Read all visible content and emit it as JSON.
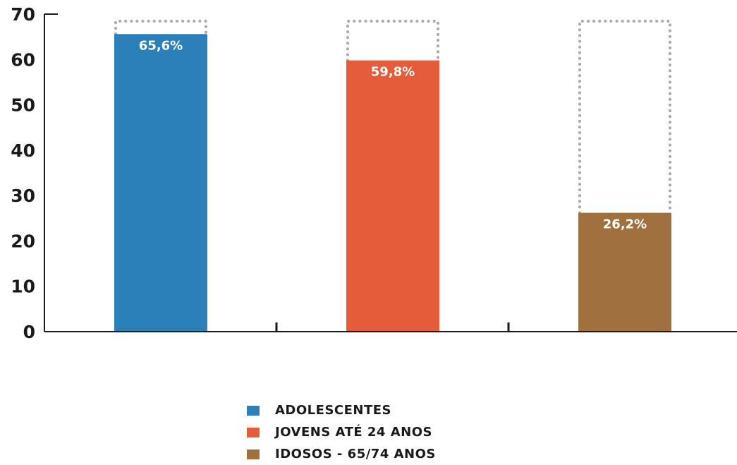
{
  "chart_data": {
    "type": "bar",
    "categories": [
      "ADOLESCENTES",
      "JOVENS ATÉ 24 ANOS",
      "IDOSOS - 65/74 ANOS"
    ],
    "values": [
      65.6,
      59.8,
      26.2
    ],
    "value_labels": [
      "65,6%",
      "59,8%",
      "26,2%"
    ],
    "colors": [
      "#2b80b9",
      "#e45c3a",
      "#a0703f"
    ],
    "ylim": [
      0,
      70
    ],
    "yticks": [
      "0",
      "10",
      "20",
      "30",
      "40",
      "50",
      "60",
      "70"
    ],
    "title": "",
    "xlabel": "",
    "ylabel": "",
    "dotted_reference_max": 70,
    "legend_position": "bottom-center"
  }
}
